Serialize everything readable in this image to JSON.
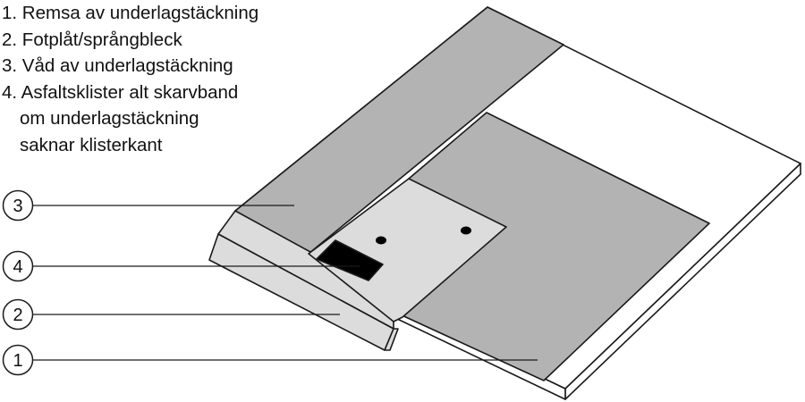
{
  "legend": {
    "items": [
      {
        "lines": [
          "1. Remsa av underlagstäckning"
        ]
      },
      {
        "lines": [
          "2. Fotplåt/språngbleck"
        ]
      },
      {
        "lines": [
          "3. Våd av underlagstäckning"
        ]
      },
      {
        "lines": [
          "4. Asfaltsklister alt skarvband",
          "om underlagstäckning",
          "saknar klisterkant"
        ]
      }
    ]
  },
  "callouts": [
    {
      "number": "3"
    },
    {
      "number": "4"
    },
    {
      "number": "2"
    },
    {
      "number": "1"
    }
  ],
  "colors": {
    "outline": "#1a1a1a",
    "felt": "#b3b3b3",
    "flashing": "#dcdcdc",
    "adhesive": "#000000",
    "board": "#ffffff"
  }
}
